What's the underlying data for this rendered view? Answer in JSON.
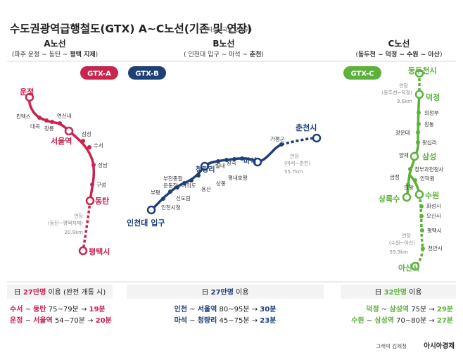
{
  "title": "수도권광역급행철도(GTX) A~C노선(기존 및 연장)",
  "source": "(자료: 국토교통부)",
  "credit": "그래픽 김제청",
  "publisher": "아시아경제",
  "colors": {
    "a": "#c8244e",
    "b": "#1f3f78",
    "c": "#5cb13a",
    "gray": "#8a8a8a",
    "pale": "#f3f3f3"
  },
  "lines": {
    "a": {
      "header": "A노선",
      "sub_pre": "(파주 운정 ~ 동탄 ~ ",
      "sub_bold": "평택 지제",
      "sub_post": ")",
      "badge": "GTX-A",
      "stations": {
        "unjeong": "운정",
        "kintex": "킨텍스",
        "daegok": "대곡",
        "changneung": "창릉",
        "yeonsinnae": "연신내",
        "seoul": "서울역",
        "samseong": "삼성",
        "suseo": "수서",
        "seongnam": "성남",
        "guseong": "구성",
        "dongtan": "동탄",
        "pyeongtaek": "평택시"
      },
      "ext": {
        "label": "연장",
        "detail": "(동탄~평택지제)",
        "length": "20.9km"
      },
      "usage": {
        "day": "日",
        "num": "27만명",
        "txt": " 이용 (완전 개통 시)"
      },
      "routes": [
        {
          "from": "수서",
          "to": "동탄",
          "time_pre": " 75~79분 → ",
          "time_new": "19분"
        },
        {
          "from": "운정",
          "to": "서울역",
          "time_pre": " 54~70분 → ",
          "time_new": "20분"
        }
      ]
    },
    "b": {
      "header": "B노선",
      "sub_pre": "( 인천대 입구 ~ 마석 ~ ",
      "sub_bold": "춘천",
      "sub_post": ")",
      "badge": "GTX-B",
      "stations": {
        "incheon": "인천대 입구",
        "incheoncity": "인천시청",
        "bupyeong": "부평",
        "bucheon": "부천종합\n운동장",
        "sindorim": "신도림",
        "yeouido": "여의도",
        "yongsan": "용산",
        "seoulst": "서울역",
        "cheongnyangni": "청량리",
        "byeollae": "별내",
        "wangsuk": "왕숙",
        "pyeongnae": "평내호평",
        "sangbong": "상봉",
        "maseok": "마석",
        "gapyeong": "가평군",
        "chuncheon": "춘천시"
      },
      "ext": {
        "label": "연장",
        "detail": "(마석~춘천)",
        "length": "55.7km"
      },
      "usage": {
        "day": "日",
        "num": "27만명",
        "txt": " 이용"
      },
      "routes": [
        {
          "from": "인천",
          "to": "서울역",
          "time_pre": " 80~95분 → ",
          "time_new": "30분"
        },
        {
          "from": "마석",
          "to": "청량리",
          "time_pre": " 45~75분 → ",
          "time_new": "23분"
        }
      ]
    },
    "c": {
      "header": "C노선",
      "sub_pre": "(",
      "sub_bold": "동두천 ~ 덕정 ~ 수원 ~ 아산",
      "sub_post": ")",
      "badge": "GTX-C",
      "stations": {
        "dongducheon": "동두천시",
        "deokjeong": "덕정",
        "uijeongbu": "의정부",
        "changdong": "창동",
        "gwangundae": "광운대",
        "wangsimni": "왕십리",
        "yangjae": "양재",
        "samseong": "삼성",
        "gwacheon": "정부과천청사",
        "indeogwon": "인덕원",
        "geumjeong": "금정",
        "uiwang": "의왕",
        "sangroksu": "상록수",
        "suwon": "수원",
        "hwaseo": "화성시",
        "osan": "오산시",
        "pyeongtaek": "평택시",
        "cheonan": "천안시",
        "asan": "아산시"
      },
      "ext_top": {
        "label": "연장",
        "detail": "(동두천~덕정)",
        "length": "9.6km"
      },
      "ext": {
        "label": "연장",
        "detail": "(수원~아산)",
        "length": "59.9km"
      },
      "usage": {
        "day": "日",
        "num": "32만명",
        "txt": " 이용"
      },
      "routes": [
        {
          "from": "덕정",
          "to": "삼성역",
          "time_pre": " 75분 → ",
          "time_new": "29분"
        },
        {
          "from": "수원",
          "to": "삼성역",
          "time_pre": " 70~80분 → ",
          "time_new": "27분"
        }
      ]
    }
  }
}
